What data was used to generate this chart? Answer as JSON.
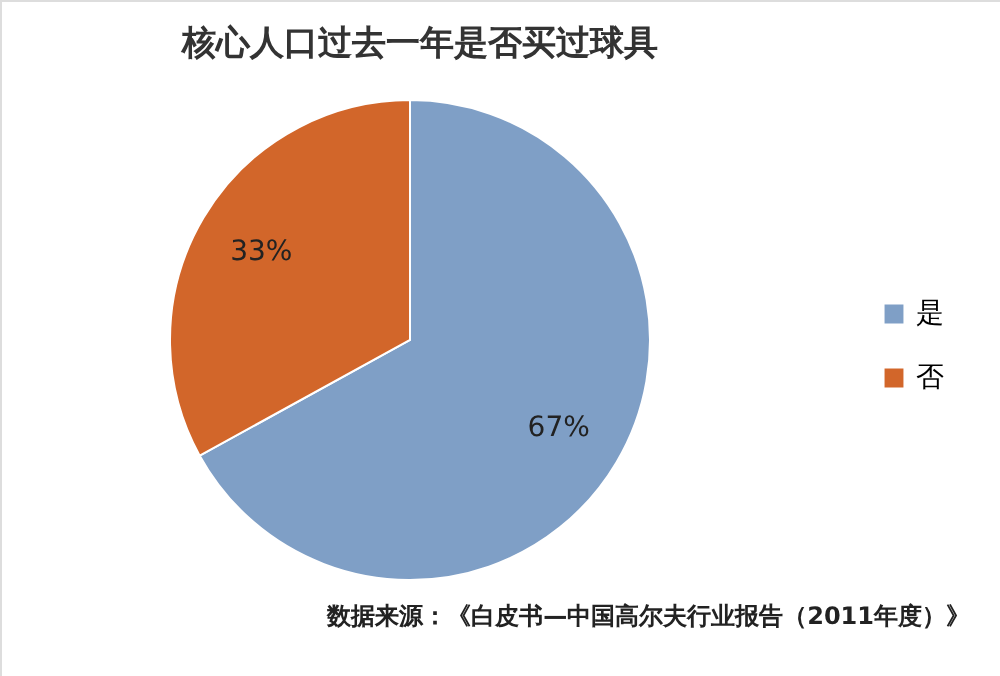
{
  "chart_data": {
    "type": "pie",
    "title": "核心人口过去一年是否买过球具",
    "categories": [
      "是",
      "否"
    ],
    "values": [
      67,
      33
    ],
    "colors": [
      "#7f9fc6",
      "#d2662a"
    ],
    "value_labels": [
      "67%",
      "33%"
    ],
    "legend": "right",
    "annotations": [
      "数据来源：《白皮书—中国高尔夫行业报告（2011年度）》"
    ]
  }
}
